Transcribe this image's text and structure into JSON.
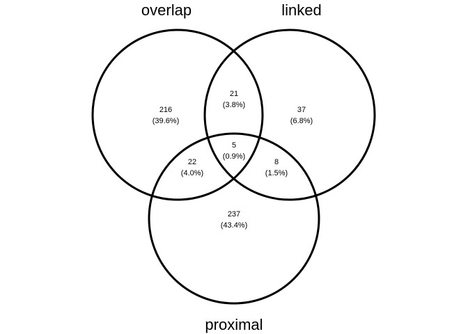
{
  "sets": [
    {
      "key": "overlap",
      "label": "overlap"
    },
    {
      "key": "linked",
      "label": "linked"
    },
    {
      "key": "proximal",
      "label": "proximal"
    }
  ],
  "regions": {
    "overlap_only": {
      "count": "216",
      "percent": "(39.6%)"
    },
    "linked_only": {
      "count": "37",
      "percent": "(6.8%)"
    },
    "proximal_only": {
      "count": "237",
      "percent": "(43.4%)"
    },
    "overlap_linked": {
      "count": "21",
      "percent": "(3.8%)"
    },
    "overlap_proximal": {
      "count": "22",
      "percent": "(4.0%)"
    },
    "linked_proximal": {
      "count": "8",
      "percent": "(1.5%)"
    },
    "all_three": {
      "count": "5",
      "percent": "(0.9%)"
    }
  }
}
